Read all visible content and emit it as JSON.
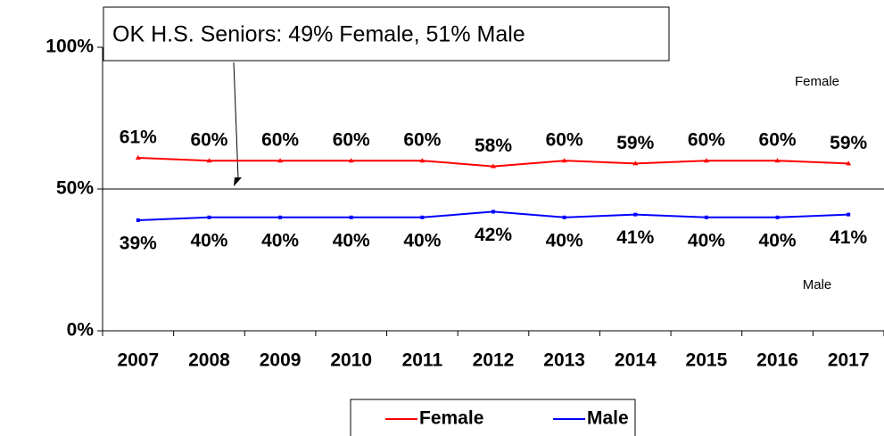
{
  "chart_data": {
    "type": "line",
    "annotations": [
      "OK H.S. Seniors: 49% Female, 51% Male",
      "Female",
      "Male"
    ],
    "categories": [
      "2007",
      "2008",
      "2009",
      "2010",
      "2011",
      "2012",
      "2013",
      "2014",
      "2015",
      "2016",
      "2017"
    ],
    "series": [
      {
        "name": "Female",
        "color": "#ff0000",
        "values": [
          61,
          60,
          60,
          60,
          60,
          58,
          60,
          59,
          60,
          60,
          59
        ],
        "value_labels": [
          "61%",
          "60%",
          "60%",
          "60%",
          "60%",
          "58%",
          "60%",
          "59%",
          "60%",
          "60%",
          "59%"
        ]
      },
      {
        "name": "Male",
        "color": "#0000ff",
        "values": [
          39,
          40,
          40,
          40,
          40,
          42,
          40,
          41,
          40,
          40,
          41
        ],
        "value_labels": [
          "39%",
          "40%",
          "40%",
          "40%",
          "40%",
          "42%",
          "40%",
          "41%",
          "40%",
          "40%",
          "41%"
        ]
      }
    ],
    "ylim": [
      0,
      100
    ],
    "yticks": [
      {
        "value": 0,
        "label": "0%"
      },
      {
        "value": 50,
        "label": "50%"
      },
      {
        "value": 100,
        "label": "100%"
      }
    ],
    "reference_line": 50,
    "legend": "bottom"
  }
}
